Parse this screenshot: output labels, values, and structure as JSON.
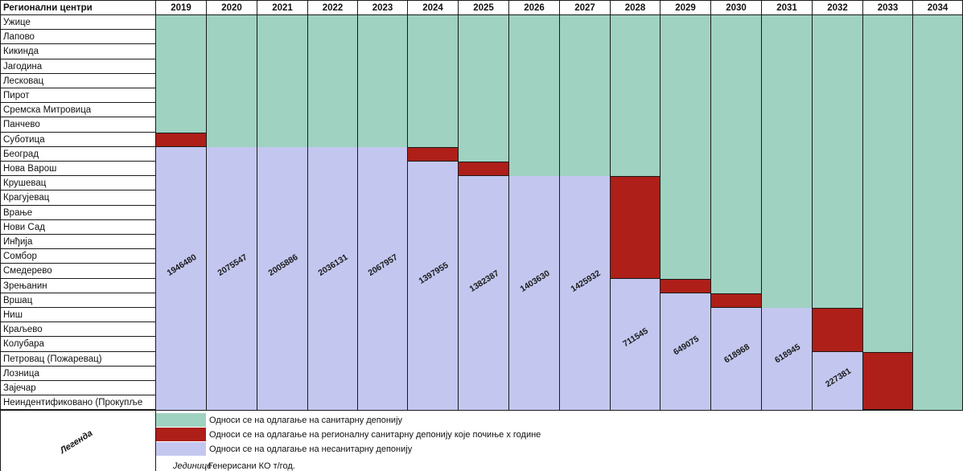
{
  "table": {
    "header_label": "Регионални центри",
    "years": [
      "2019",
      "2020",
      "2021",
      "2022",
      "2023",
      "2024",
      "2025",
      "2026",
      "2027",
      "2028",
      "2029",
      "2030",
      "2031",
      "2032",
      "2033",
      "2034"
    ],
    "centers": [
      "Ужице",
      "Лапово",
      "Кикинда",
      "Јагодина",
      "Лесковац",
      "Пирот",
      "Сремска Митровица",
      "Панчево",
      "Суботица",
      "Београд",
      "Нова Варош",
      "Крушевац",
      "Крагујевац",
      "Врање",
      "Нови Сад",
      "Инђија",
      "Сомбор",
      "Смедерево",
      "Зрењанин",
      "Вршац",
      "Ниш",
      "Краљево",
      "Колубара",
      "Петровац (Пожаревац)",
      "Лозница",
      "Зајечар",
      "Неиндентификовано (Прокупље"
    ],
    "columns": [
      {
        "year": "2019",
        "red_row": 8,
        "blue_from": 9,
        "value": "1946480"
      },
      {
        "year": "2020",
        "red_row": null,
        "blue_from": 9,
        "value": "2075547"
      },
      {
        "year": "2021",
        "red_row": null,
        "blue_from": 9,
        "value": "2005886"
      },
      {
        "year": "2022",
        "red_row": null,
        "blue_from": 9,
        "value": "2036131"
      },
      {
        "year": "2023",
        "red_row": null,
        "blue_from": 9,
        "value": "2067957"
      },
      {
        "year": "2024",
        "red_row": 9,
        "blue_from": 10,
        "value": "1397955"
      },
      {
        "year": "2025",
        "red_row": 10,
        "blue_from": 11,
        "value": "1382387"
      },
      {
        "year": "2026",
        "red_row": null,
        "blue_from": 11,
        "value": "1403630"
      },
      {
        "year": "2027",
        "red_row": null,
        "blue_from": 11,
        "value": "1425932"
      },
      {
        "year": "2028",
        "red_rows": [
          11,
          12,
          13,
          14,
          15,
          16,
          17
        ],
        "blue_from": 18,
        "value": "711545"
      },
      {
        "year": "2029",
        "red_row": 18,
        "blue_from": 19,
        "value": "649075"
      },
      {
        "year": "2030",
        "red_row": 19,
        "blue_from": 20,
        "value": "618968"
      },
      {
        "year": "2031",
        "red_row": null,
        "blue_from": 20,
        "value": "618945"
      },
      {
        "year": "2032",
        "red_rows": [
          20,
          21,
          22
        ],
        "blue_from": 23,
        "value": "227381"
      },
      {
        "year": "2033",
        "red_rows": [
          23,
          24,
          25,
          26
        ],
        "blue_from": null,
        "value": ""
      },
      {
        "year": "2034",
        "red_row": null,
        "blue_from": null,
        "value": ""
      }
    ]
  },
  "legend": {
    "title": "Легенда",
    "items": [
      {
        "color": "#9fd2c1",
        "text": "Односи се на одлагање на санитарну депонију"
      },
      {
        "color": "#ad1f18",
        "text": "Односи се на одлагање на регионалну санитарну депонију које почиње х године"
      },
      {
        "color": "#c3c7ef",
        "text": "Односи се на одлагање на несанитарну депонију"
      }
    ],
    "unit_label": "Јединице",
    "unit_text": "Генерисани КО т/год."
  },
  "colors": {
    "green": "#9fd2c1",
    "red": "#ad1f18",
    "blue": "#c3c7ef"
  }
}
